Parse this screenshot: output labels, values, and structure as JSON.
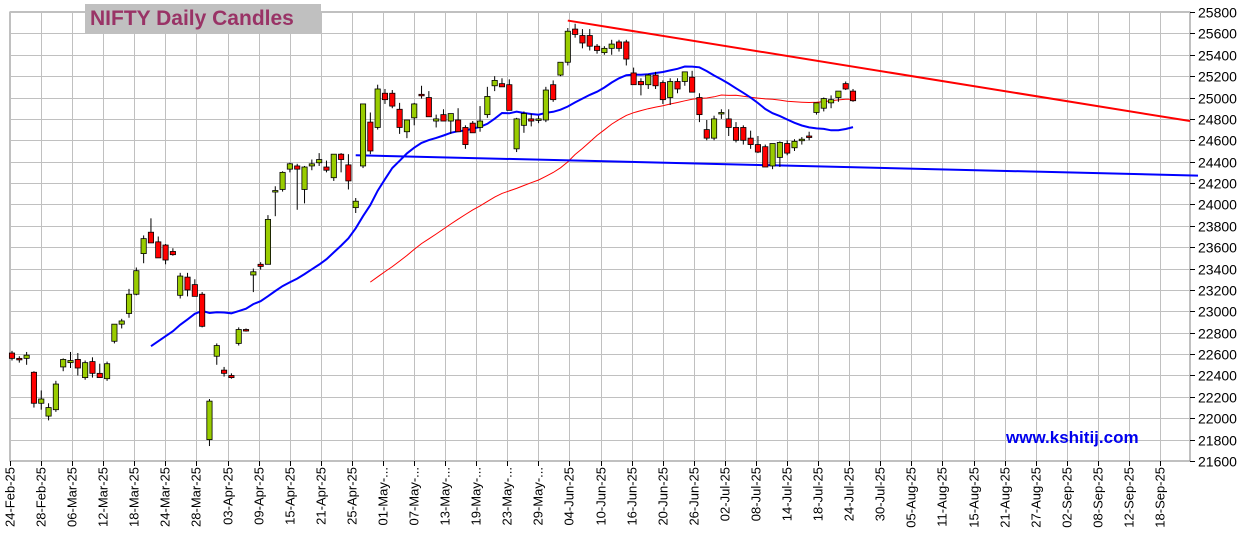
{
  "header": {
    "title": "NIFTY Daily Candles",
    "watermark": "www.kshitij.com"
  },
  "colors": {
    "up": "#99cc00",
    "down": "#ff0000",
    "wick": "#000000",
    "fast_ma": "#0000ff",
    "slow_ma": "#ff0000",
    "resistance": "#ff0000",
    "support": "#0000ff",
    "grid": "#c0c0c0"
  },
  "chart_data": {
    "type": "candlestick",
    "title": "NIFTY Daily Candles",
    "ylim": [
      21600,
      25800
    ],
    "y_ticks": [
      21600,
      21800,
      22000,
      22200,
      22400,
      22600,
      22800,
      23000,
      23200,
      23400,
      23600,
      23800,
      24000,
      24200,
      24400,
      24600,
      24800,
      25000,
      25200,
      25400,
      25600,
      25800
    ],
    "x_tick_labels": [
      "24-Feb-25",
      "28-Feb-25",
      "06-Mar-25",
      "12-Mar-25",
      "18-Mar-25",
      "24-Mar-25",
      "28-Mar-25",
      "03-Apr-25",
      "09-Apr-25",
      "15-Apr-25",
      "21-Apr-25",
      "25-Apr-25",
      "01-May-...",
      "07-May-...",
      "13-May-...",
      "19-May-...",
      "23-May-...",
      "29-May-...",
      "04-Jun-25",
      "10-Jun-25",
      "16-Jun-25",
      "20-Jun-25",
      "26-Jun-25",
      "02-Jul-25",
      "08-Jul-25",
      "14-Jul-25",
      "18-Jul-25",
      "24-Jul-25",
      "30-Jul-25",
      "05-Aug-25",
      "11-Aug-25",
      "15-Aug-25",
      "21-Aug-25",
      "27-Aug-25",
      "02-Sep-25",
      "08-Sep-25",
      "12-Sep-25",
      "18-Sep-25"
    ],
    "grid": true,
    "candles": [
      [
        22610,
        22630,
        22540,
        22560
      ],
      [
        22560,
        22580,
        22520,
        22550
      ],
      [
        22560,
        22620,
        22500,
        22590
      ],
      [
        22430,
        22440,
        22100,
        22140
      ],
      [
        22140,
        22260,
        22080,
        22180
      ],
      [
        22020,
        22140,
        21980,
        22100
      ],
      [
        22080,
        22350,
        22060,
        22320
      ],
      [
        22480,
        22560,
        22440,
        22550
      ],
      [
        22520,
        22620,
        22470,
        22540
      ],
      [
        22550,
        22610,
        22400,
        22470
      ],
      [
        22380,
        22540,
        22360,
        22520
      ],
      [
        22530,
        22570,
        22380,
        22420
      ],
      [
        22420,
        22510,
        22390,
        22380
      ],
      [
        22370,
        22530,
        22350,
        22510
      ],
      [
        22720,
        22870,
        22700,
        22880
      ],
      [
        22880,
        22930,
        22840,
        22910
      ],
      [
        22980,
        23210,
        22940,
        23160
      ],
      [
        23160,
        23410,
        23150,
        23380
      ],
      [
        23540,
        23710,
        23450,
        23680
      ],
      [
        23740,
        23870,
        23640,
        23640
      ],
      [
        23650,
        23700,
        23500,
        23500
      ],
      [
        23620,
        23630,
        23440,
        23480
      ],
      [
        23560,
        23590,
        23520,
        23530
      ],
      [
        23150,
        23360,
        23120,
        23330
      ],
      [
        23320,
        23360,
        23140,
        23200
      ],
      [
        23250,
        23300,
        23180,
        23140
      ],
      [
        23160,
        23180,
        22850,
        22860
      ],
      [
        21800,
        22180,
        21740,
        22160
      ],
      [
        22580,
        22700,
        22500,
        22680
      ],
      [
        22450,
        22480,
        22390,
        22420
      ],
      [
        22400,
        22420,
        22370,
        22380
      ],
      [
        22700,
        22850,
        22680,
        22830
      ],
      [
        22830,
        22840,
        22810,
        22820
      ],
      [
        23340,
        23400,
        23180,
        23370
      ],
      [
        23440,
        23460,
        23390,
        23420
      ],
      [
        23440,
        23900,
        23440,
        23860
      ],
      [
        24120,
        24170,
        23890,
        24130
      ],
      [
        24140,
        24310,
        24120,
        24300
      ],
      [
        24330,
        24390,
        24300,
        24380
      ],
      [
        24360,
        24380,
        23950,
        24330
      ],
      [
        24140,
        24360,
        24010,
        24350
      ],
      [
        24360,
        24420,
        24320,
        24380
      ],
      [
        24390,
        24480,
        24360,
        24420
      ],
      [
        24350,
        24410,
        24300,
        24320
      ],
      [
        24250,
        24460,
        24220,
        24470
      ],
      [
        24470,
        24480,
        24300,
        24420
      ],
      [
        24370,
        24470,
        24140,
        24220
      ],
      [
        23970,
        24060,
        23920,
        24030
      ],
      [
        24360,
        24930,
        24340,
        24940
      ],
      [
        24770,
        24860,
        24470,
        24500
      ],
      [
        24720,
        25120,
        24700,
        25080
      ],
      [
        25040,
        25080,
        24940,
        24980
      ],
      [
        25040,
        25070,
        24900,
        24920
      ],
      [
        24890,
        24950,
        24660,
        24720
      ],
      [
        24680,
        24790,
        24620,
        24790
      ],
      [
        24810,
        24950,
        24740,
        24940
      ],
      [
        25030,
        25110,
        24990,
        25020
      ],
      [
        25000,
        25060,
        24830,
        24820
      ],
      [
        24780,
        24840,
        24720,
        24800
      ],
      [
        24840,
        24890,
        24780,
        24780
      ],
      [
        24780,
        24850,
        24660,
        24850
      ],
      [
        24790,
        24900,
        24700,
        24680
      ],
      [
        24720,
        24740,
        24520,
        24560
      ],
      [
        24760,
        24780,
        24700,
        24670
      ],
      [
        24720,
        24920,
        24680,
        24780
      ],
      [
        24840,
        25100,
        24810,
        25010
      ],
      [
        25110,
        25200,
        25060,
        25160
      ],
      [
        25130,
        25180,
        25100,
        25100
      ],
      [
        25120,
        25170,
        24880,
        24880
      ],
      [
        24520,
        24810,
        24490,
        24800
      ],
      [
        24740,
        24870,
        24670,
        24850
      ],
      [
        24800,
        24850,
        24730,
        24780
      ],
      [
        24800,
        24830,
        24760,
        24800
      ],
      [
        24790,
        25100,
        24770,
        25070
      ],
      [
        25120,
        25160,
        24960,
        24980
      ],
      [
        25210,
        25310,
        25200,
        25330
      ],
      [
        25330,
        25650,
        25300,
        25620
      ],
      [
        25640,
        25690,
        25560,
        25590
      ],
      [
        25580,
        25640,
        25460,
        25510
      ],
      [
        25580,
        25640,
        25440,
        25480
      ],
      [
        25480,
        25500,
        25410,
        25440
      ],
      [
        25420,
        25480,
        25400,
        25460
      ],
      [
        25460,
        25540,
        25400,
        25500
      ],
      [
        25520,
        25540,
        25430,
        25460
      ],
      [
        25520,
        25540,
        25300,
        25360
      ],
      [
        25230,
        25280,
        25120,
        25120
      ],
      [
        25150,
        25180,
        25020,
        25120
      ],
      [
        25120,
        25220,
        25080,
        25210
      ],
      [
        25210,
        25240,
        25080,
        25110
      ],
      [
        25140,
        25160,
        24940,
        24980
      ],
      [
        25000,
        25180,
        24930,
        25150
      ],
      [
        25150,
        25180,
        25040,
        25080
      ],
      [
        25150,
        25240,
        25110,
        25240
      ],
      [
        25190,
        25250,
        25050,
        25050
      ],
      [
        25000,
        25040,
        24770,
        24840
      ],
      [
        24700,
        24790,
        24600,
        24620
      ],
      [
        24620,
        24830,
        24600,
        24800
      ],
      [
        24850,
        24890,
        24800,
        24860
      ],
      [
        24800,
        24890,
        24640,
        24720
      ],
      [
        24720,
        24770,
        24580,
        24600
      ],
      [
        24720,
        24740,
        24560,
        24600
      ],
      [
        24620,
        24690,
        24520,
        24560
      ],
      [
        24560,
        24640,
        24480,
        24490
      ],
      [
        24540,
        24560,
        24350,
        24350
      ],
      [
        24360,
        24550,
        24330,
        24570
      ],
      [
        24440,
        24590,
        24350,
        24580
      ],
      [
        24570,
        24600,
        24460,
        24480
      ],
      [
        24530,
        24610,
        24500,
        24590
      ],
      [
        24600,
        24630,
        24560,
        24610
      ],
      [
        24640,
        24680,
        24600,
        24630
      ],
      [
        24860,
        24950,
        24840,
        24950
      ],
      [
        24900,
        25000,
        24870,
        24990
      ],
      [
        24950,
        25020,
        24900,
        24980
      ],
      [
        25000,
        25050,
        24960,
        25060
      ],
      [
        25130,
        25150,
        25070,
        25080
      ],
      [
        25060,
        25080,
        24960,
        24970
      ]
    ],
    "annotations": [
      "blue 20-day moving average",
      "red 50-day moving average",
      "red descending resistance line",
      "blue descending support line"
    ]
  }
}
